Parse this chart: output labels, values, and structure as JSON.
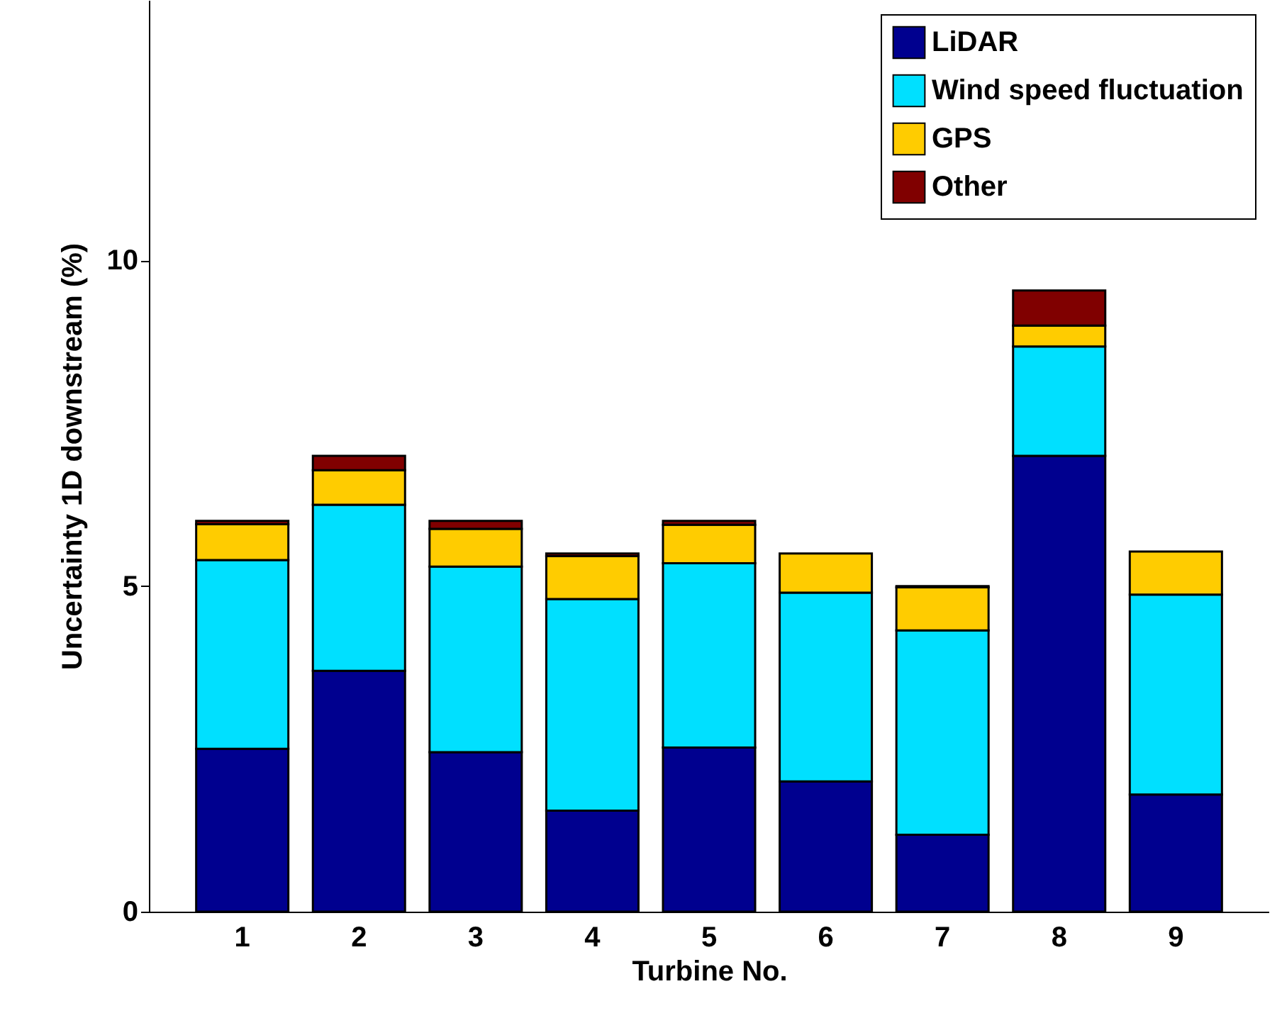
{
  "chart_data": {
    "type": "bar",
    "stacked": true,
    "xlabel": "Turbine No.",
    "ylabel": "Uncertainty 1D downstream (%)",
    "categories": [
      "1",
      "2",
      "3",
      "4",
      "5",
      "6",
      "7",
      "8",
      "9"
    ],
    "ylim": [
      0,
      14
    ],
    "yticks": [
      0,
      5,
      10
    ],
    "grid": false,
    "legend": "top right",
    "series": [
      {
        "name": "LiDAR",
        "color": "#00008f",
        "values": [
          2.5,
          3.7,
          2.45,
          1.55,
          2.52,
          2.0,
          1.18,
          7.0,
          1.8
        ]
      },
      {
        "name": "Wind speed fluctuation",
        "color": "#00e0ff",
        "values": [
          2.9,
          2.55,
          2.85,
          3.25,
          2.83,
          2.9,
          3.14,
          1.68,
          3.07
        ]
      },
      {
        "name": "GPS",
        "color": "#ffcc00",
        "values": [
          0.55,
          0.53,
          0.58,
          0.66,
          0.59,
          0.6,
          0.66,
          0.32,
          0.66
        ]
      },
      {
        "name": "Other",
        "color": "#800000",
        "values": [
          0.05,
          0.22,
          0.12,
          0.04,
          0.06,
          null,
          0.02,
          0.54,
          null
        ]
      }
    ]
  }
}
